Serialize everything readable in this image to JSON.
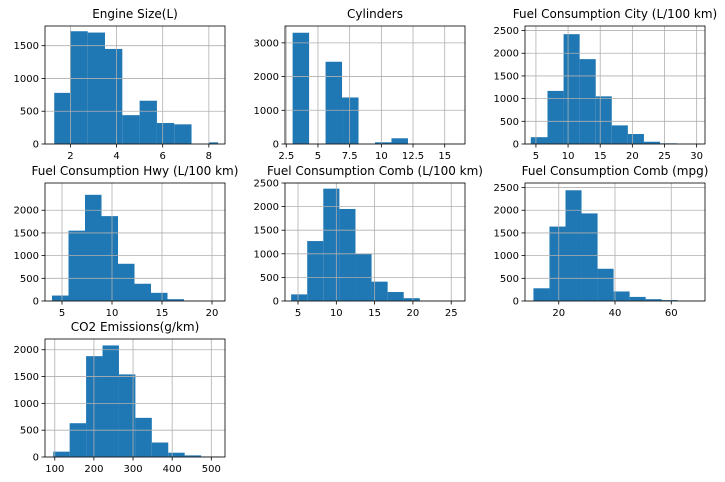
{
  "chart_data": [
    {
      "type": "bar",
      "title": "Engine Size(L)",
      "xlim": [
        0.9,
        8.7
      ],
      "ylim": [
        0,
        1800
      ],
      "xticks": [
        2,
        4,
        6,
        8
      ],
      "yticks": [
        0,
        500,
        1000,
        1500
      ],
      "grid": true,
      "bin_edges": [
        1.3,
        2.0,
        2.75,
        3.5,
        4.25,
        5.0,
        5.75,
        6.5,
        7.25,
        8.0,
        8.4
      ],
      "counts": [
        780,
        1720,
        1700,
        1450,
        440,
        660,
        320,
        300,
        0,
        25
      ]
    },
    {
      "type": "bar",
      "title": "Cylinders",
      "xlim": [
        2.4,
        16.6
      ],
      "ylim": [
        0,
        3500
      ],
      "xticks": [
        2.5,
        5.0,
        7.5,
        10.0,
        12.5,
        15.0
      ],
      "yticks": [
        0,
        1000,
        2000,
        3000
      ],
      "grid": true,
      "bin_edges": [
        3,
        4.3,
        5.6,
        6.9,
        8.2,
        9.5,
        10.8,
        12.1,
        13.4,
        14.7,
        16
      ],
      "counts": [
        3300,
        0,
        2440,
        1380,
        0,
        50,
        170,
        0,
        0,
        10
      ]
    },
    {
      "type": "bar",
      "title": "Fuel Consumption City (L/100 km)",
      "xlim": [
        3.3,
        31.3
      ],
      "ylim": [
        0,
        2600
      ],
      "xticks": [
        5,
        10,
        15,
        20,
        25,
        30
      ],
      "yticks": [
        0,
        500,
        1000,
        1500,
        2000,
        2500
      ],
      "grid": true,
      "bin_edges": [
        4.2,
        6.8,
        9.3,
        11.8,
        14.3,
        16.8,
        19.3,
        21.8,
        24.3,
        26.9,
        30.6
      ],
      "counts": [
        150,
        1170,
        2420,
        1870,
        1050,
        410,
        220,
        50,
        15,
        5
      ]
    },
    {
      "type": "bar",
      "title": "Fuel Consumption Hwy (L/100 km)",
      "xlim": [
        3.3,
        21.3
      ],
      "ylim": [
        0,
        2600
      ],
      "xticks": [
        5,
        10,
        15,
        20
      ],
      "yticks": [
        0,
        500,
        1000,
        1500,
        2000
      ],
      "grid": true,
      "bin_edges": [
        4.0,
        5.65,
        7.3,
        8.95,
        10.6,
        12.25,
        13.9,
        15.55,
        17.2,
        18.85,
        20.6
      ],
      "counts": [
        120,
        1550,
        2340,
        1870,
        820,
        380,
        180,
        40,
        10,
        5
      ]
    },
    {
      "type": "bar",
      "title": "Fuel Consumption Comb (L/100 km)",
      "xlim": [
        3.3,
        26.8
      ],
      "ylim": [
        0,
        2500
      ],
      "xticks": [
        5,
        10,
        15,
        20,
        25
      ],
      "yticks": [
        0,
        500,
        1000,
        1500,
        2000,
        2500
      ],
      "grid": true,
      "bin_edges": [
        4.1,
        6.2,
        8.3,
        10.4,
        12.5,
        14.6,
        16.7,
        18.8,
        20.9,
        23.0,
        26.1
      ],
      "counts": [
        140,
        1270,
        2380,
        1950,
        1000,
        410,
        190,
        60,
        10,
        5
      ]
    },
    {
      "type": "bar",
      "title": "Fuel Consumption Comb (mpg)",
      "xlim": [
        8,
        72
      ],
      "ylim": [
        0,
        2600
      ],
      "xticks": [
        20,
        40,
        60
      ],
      "yticks": [
        0,
        500,
        1000,
        1500,
        2000,
        2500
      ],
      "grid": true,
      "bin_edges": [
        11,
        16.7,
        22.4,
        28.1,
        33.8,
        39.5,
        45.2,
        50.9,
        56.6,
        62.3,
        69
      ],
      "counts": [
        280,
        1640,
        2440,
        1930,
        710,
        210,
        90,
        40,
        20,
        10
      ]
    },
    {
      "type": "bar",
      "title": "CO2 Emissions(g/km)",
      "xlim": [
        75,
        535
      ],
      "ylim": [
        0,
        2200
      ],
      "xticks": [
        100,
        200,
        300,
        400,
        500
      ],
      "yticks": [
        0,
        500,
        1000,
        1500,
        2000
      ],
      "grid": true,
      "bin_edges": [
        96,
        138,
        180,
        222,
        264,
        306,
        348,
        390,
        432,
        474,
        522
      ],
      "counts": [
        100,
        630,
        1880,
        2080,
        1540,
        730,
        270,
        80,
        30,
        10
      ]
    }
  ]
}
